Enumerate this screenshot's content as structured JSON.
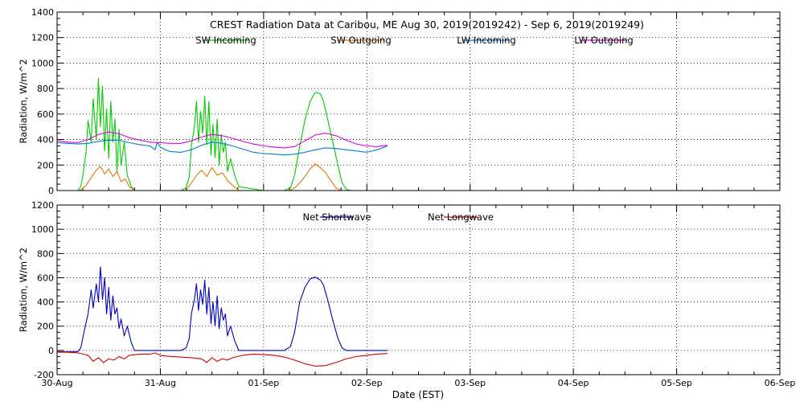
{
  "colors": {
    "sw_in": "#00cc00",
    "sw_out": "#e07800",
    "lw_in": "#0080d0",
    "lw_out": "#e000e0",
    "net_sw": "#0000c0",
    "net_lw": "#d00000",
    "axis": "#000000",
    "grid": "#000000"
  },
  "chart_data": [
    {
      "type": "line",
      "title": "CREST Radiation Data at Caribou, ME   Aug 30, 2019(2019242) - Sep  6, 2019(2019249)",
      "xlabel": "",
      "ylabel": "Radiation, W/m^2",
      "xlim": [
        0,
        7
      ],
      "ylim": [
        0,
        1400
      ],
      "yticks": [
        0,
        200,
        400,
        600,
        800,
        1000,
        1200,
        1400
      ],
      "grid": true,
      "legend": "top",
      "series": [
        {
          "name": "SW Incoming",
          "color_key": "sw_in",
          "x": [
            0.0,
            0.2,
            0.23,
            0.25,
            0.28,
            0.3,
            0.33,
            0.35,
            0.38,
            0.4,
            0.42,
            0.44,
            0.46,
            0.48,
            0.5,
            0.52,
            0.54,
            0.56,
            0.58,
            0.6,
            0.62,
            0.65,
            0.68,
            0.72,
            0.75,
            1.0,
            1.2,
            1.25,
            1.28,
            1.3,
            1.33,
            1.35,
            1.37,
            1.39,
            1.41,
            1.43,
            1.45,
            1.47,
            1.49,
            1.51,
            1.53,
            1.55,
            1.57,
            1.59,
            1.61,
            1.63,
            1.65,
            1.68,
            1.72,
            1.76,
            2.0,
            2.2,
            2.26,
            2.3,
            2.35,
            2.4,
            2.45,
            2.5,
            2.55,
            2.58,
            2.62,
            2.67,
            2.72,
            2.76,
            2.8,
            2.85,
            2.9,
            3.2
          ],
          "values": [
            0,
            0,
            30,
            120,
            300,
            550,
            380,
            720,
            400,
            880,
            500,
            820,
            310,
            640,
            250,
            700,
            380,
            560,
            150,
            480,
            200,
            380,
            120,
            30,
            0,
            0,
            0,
            20,
            110,
            350,
            500,
            700,
            380,
            620,
            450,
            740,
            360,
            700,
            280,
            520,
            260,
            560,
            200,
            440,
            300,
            380,
            150,
            250,
            120,
            30,
            0,
            0,
            20,
            120,
            350,
            550,
            700,
            770,
            760,
            700,
            560,
            380,
            200,
            60,
            10,
            0,
            0,
            0
          ]
        },
        {
          "name": "SW Outgoing",
          "color_key": "sw_out",
          "x": [
            0.0,
            0.22,
            0.28,
            0.33,
            0.38,
            0.42,
            0.46,
            0.5,
            0.54,
            0.58,
            0.62,
            0.66,
            0.7,
            0.75,
            1.0,
            1.25,
            1.3,
            1.35,
            1.4,
            1.45,
            1.5,
            1.55,
            1.6,
            1.65,
            1.7,
            1.76,
            2.0,
            2.25,
            2.3,
            2.35,
            2.4,
            2.45,
            2.5,
            2.55,
            2.6,
            2.65,
            2.7,
            2.75,
            3.2
          ],
          "values": [
            0,
            0,
            40,
            100,
            160,
            190,
            130,
            170,
            110,
            150,
            70,
            90,
            30,
            0,
            0,
            0,
            60,
            120,
            160,
            110,
            180,
            120,
            140,
            80,
            40,
            0,
            0,
            0,
            20,
            60,
            110,
            170,
            210,
            180,
            140,
            80,
            20,
            0,
            0
          ]
        },
        {
          "name": "LW Incoming",
          "color_key": "lw_in",
          "x": [
            0.0,
            0.1,
            0.2,
            0.3,
            0.4,
            0.5,
            0.6,
            0.7,
            0.8,
            0.9,
            0.95,
            0.97,
            1.0,
            1.05,
            1.1,
            1.2,
            1.3,
            1.4,
            1.5,
            1.6,
            1.7,
            1.8,
            1.9,
            2.0,
            2.1,
            2.2,
            2.3,
            2.4,
            2.5,
            2.6,
            2.7,
            2.8,
            2.9,
            3.0,
            3.1,
            3.2
          ],
          "values": [
            375,
            370,
            365,
            370,
            385,
            395,
            395,
            375,
            360,
            350,
            320,
            380,
            340,
            320,
            305,
            300,
            320,
            355,
            380,
            370,
            350,
            325,
            300,
            290,
            285,
            280,
            285,
            300,
            320,
            335,
            330,
            320,
            310,
            300,
            320,
            350
          ]
        },
        {
          "name": "LW Outgoing",
          "color_key": "lw_out",
          "x": [
            0.0,
            0.1,
            0.2,
            0.3,
            0.4,
            0.5,
            0.6,
            0.7,
            0.8,
            0.9,
            1.0,
            1.1,
            1.2,
            1.3,
            1.4,
            1.5,
            1.6,
            1.7,
            1.8,
            1.9,
            2.0,
            2.1,
            2.2,
            2.3,
            2.4,
            2.5,
            2.6,
            2.7,
            2.8,
            2.9,
            3.0,
            3.1,
            3.2
          ],
          "values": [
            390,
            380,
            375,
            400,
            440,
            460,
            445,
            415,
            395,
            380,
            375,
            370,
            370,
            390,
            420,
            440,
            430,
            410,
            385,
            365,
            350,
            340,
            335,
            345,
            390,
            435,
            450,
            430,
            395,
            365,
            350,
            345,
            355
          ]
        }
      ]
    },
    {
      "type": "line",
      "title": "",
      "xlabel": "Date (EST)",
      "ylabel": "Radiation, W/m^2",
      "xlim": [
        0,
        7
      ],
      "ylim": [
        -200,
        1200
      ],
      "yticks": [
        -200,
        0,
        200,
        400,
        600,
        800,
        1000,
        1200
      ],
      "x_tick_labels": [
        "30-Aug",
        "31-Aug",
        "01-Sep",
        "02-Sep",
        "03-Sep",
        "04-Sep",
        "05-Sep",
        "06-Sep"
      ],
      "grid": true,
      "legend": "top",
      "series": [
        {
          "name": "Net Shortwave",
          "color_key": "net_sw",
          "x": [
            0.0,
            0.2,
            0.23,
            0.26,
            0.3,
            0.33,
            0.35,
            0.38,
            0.4,
            0.42,
            0.44,
            0.46,
            0.48,
            0.5,
            0.52,
            0.54,
            0.56,
            0.58,
            0.6,
            0.62,
            0.65,
            0.68,
            0.72,
            0.75,
            1.0,
            1.2,
            1.25,
            1.28,
            1.3,
            1.33,
            1.35,
            1.37,
            1.39,
            1.41,
            1.43,
            1.45,
            1.47,
            1.49,
            1.51,
            1.53,
            1.55,
            1.57,
            1.59,
            1.61,
            1.63,
            1.65,
            1.68,
            1.72,
            1.76,
            2.0,
            2.2,
            2.26,
            2.3,
            2.35,
            2.4,
            2.45,
            2.5,
            2.55,
            2.58,
            2.62,
            2.67,
            2.72,
            2.76,
            2.8,
            3.0,
            3.2
          ],
          "values": [
            -10,
            -10,
            20,
            150,
            300,
            500,
            350,
            550,
            400,
            690,
            420,
            600,
            300,
            520,
            250,
            450,
            300,
            350,
            180,
            260,
            120,
            200,
            60,
            0,
            0,
            0,
            20,
            100,
            300,
            420,
            550,
            330,
            500,
            380,
            580,
            300,
            520,
            220,
            400,
            200,
            450,
            180,
            350,
            250,
            300,
            120,
            200,
            80,
            0,
            0,
            0,
            30,
            150,
            400,
            520,
            590,
            605,
            580,
            540,
            420,
            250,
            100,
            20,
            0,
            0,
            0
          ]
        },
        {
          "name": "Net Longwave",
          "color_key": "net_lw",
          "x": [
            0.0,
            0.1,
            0.2,
            0.3,
            0.35,
            0.4,
            0.45,
            0.5,
            0.55,
            0.6,
            0.65,
            0.7,
            0.8,
            0.9,
            0.95,
            1.0,
            1.1,
            1.2,
            1.3,
            1.4,
            1.45,
            1.5,
            1.55,
            1.6,
            1.65,
            1.7,
            1.8,
            1.9,
            2.0,
            2.1,
            2.2,
            2.3,
            2.4,
            2.5,
            2.6,
            2.7,
            2.8,
            2.9,
            3.0,
            3.1,
            3.2
          ],
          "values": [
            -15,
            -15,
            -20,
            -40,
            -90,
            -60,
            -100,
            -70,
            -80,
            -50,
            -70,
            -40,
            -30,
            -30,
            -20,
            -40,
            -50,
            -55,
            -60,
            -70,
            -100,
            -60,
            -90,
            -70,
            -80,
            -60,
            -40,
            -30,
            -35,
            -40,
            -55,
            -80,
            -110,
            -130,
            -125,
            -100,
            -70,
            -50,
            -40,
            -30,
            -25
          ]
        }
      ]
    }
  ]
}
